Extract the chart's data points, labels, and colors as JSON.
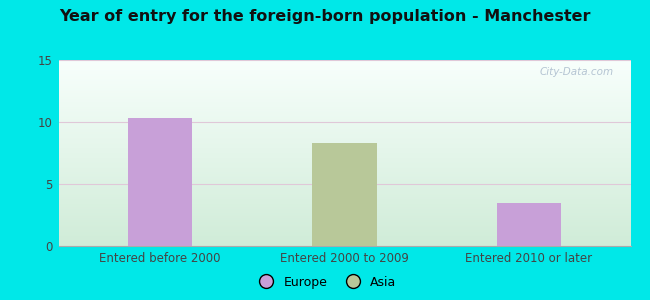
{
  "title": "Year of entry for the foreign-born population - Manchester",
  "categories": [
    "Entered before 2000",
    "Entered 2000 to 2009",
    "Entered 2010 or later"
  ],
  "europe_values": [
    10.3,
    0,
    3.5
  ],
  "asia_values": [
    0,
    8.3,
    0
  ],
  "bar_colors": {
    "europe": "#c8a0d8",
    "asia": "#b8c899"
  },
  "ylim": [
    0,
    15
  ],
  "yticks": [
    0,
    5,
    10,
    15
  ],
  "bg_outer": "#00e8e8",
  "watermark": "City-Data.com",
  "legend_labels": [
    "Europe",
    "Asia"
  ],
  "bar_width": 0.35,
  "plot_bg_colors": [
    "#d8f0e0",
    "#f4fdf8"
  ],
  "grid_color": "#ddeedd",
  "spine_color": "#cccccc"
}
